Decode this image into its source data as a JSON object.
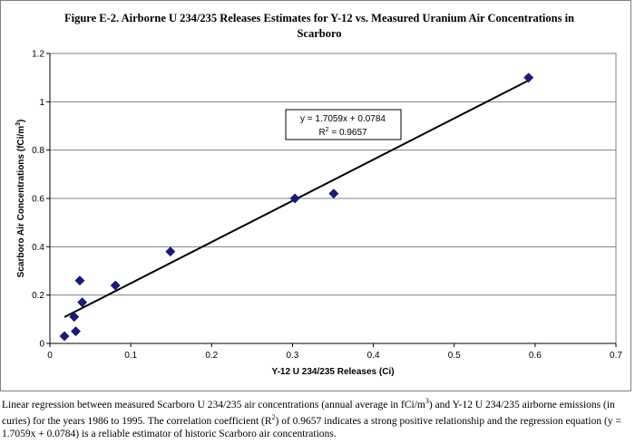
{
  "chart_data": {
    "type": "scatter",
    "title_line1": "Figure E-2. Airborne U 234/235 Releases Estimates for Y-12 vs. Measured Uranium Air Concentrations in",
    "title_line2": "Scarboro",
    "xlabel": "Y-12 U 234/235 Releases (Ci)",
    "ylabel": "Scarboro Air Concentrations (fCi/m",
    "ylabel_sup": "3",
    "ylabel_end": ")",
    "xlim": [
      0,
      0.7
    ],
    "ylim": [
      0,
      1.2
    ],
    "x_ticks": [
      0,
      0.1,
      0.2,
      0.3,
      0.4,
      0.5,
      0.6,
      0.7
    ],
    "x_tick_labels": [
      "0",
      "0.1",
      "0.2",
      "0.3",
      "0.4",
      "0.5",
      "0.6",
      "0.7"
    ],
    "y_ticks": [
      0,
      0.2,
      0.4,
      0.6,
      0.8,
      1,
      1.2
    ],
    "y_tick_labels": [
      "0",
      "0.2",
      "0.4",
      "0.6",
      "0.8",
      "1",
      "1.2"
    ],
    "grid": "horizontal",
    "marker_color": "#1a1a80",
    "points": [
      {
        "x": 0.018,
        "y": 0.03
      },
      {
        "x": 0.03,
        "y": 0.11
      },
      {
        "x": 0.032,
        "y": 0.05
      },
      {
        "x": 0.037,
        "y": 0.26
      },
      {
        "x": 0.04,
        "y": 0.17
      },
      {
        "x": 0.081,
        "y": 0.24
      },
      {
        "x": 0.149,
        "y": 0.38
      },
      {
        "x": 0.303,
        "y": 0.6
      },
      {
        "x": 0.351,
        "y": 0.62
      },
      {
        "x": 0.592,
        "y": 1.1
      }
    ],
    "trendline": {
      "slope": 1.7059,
      "intercept": 0.0784,
      "x_start": 0.018,
      "x_end": 0.592
    },
    "equation_text": "y = 1.7059x + 0.0784",
    "r2_prefix": "R",
    "r2_sup": "2",
    "r2_suffix": " = 0.9657"
  },
  "caption": {
    "part1": "Linear regression between measured Scarboro U 234/235 air concentrations (annual average in fCi/m",
    "sup1": "3",
    "part2": ") and Y-12 U 234/235 airborne emissions (in curies) for the years 1986 to 1995. The correlation coefficient (R",
    "sup2": "2",
    "part3": ") of 0.9657 indicates a strong positive relationship and the regression equation (y = 1.7059x + 0.0784) is a reliable estimator of historic Scarboro air concentrations."
  }
}
